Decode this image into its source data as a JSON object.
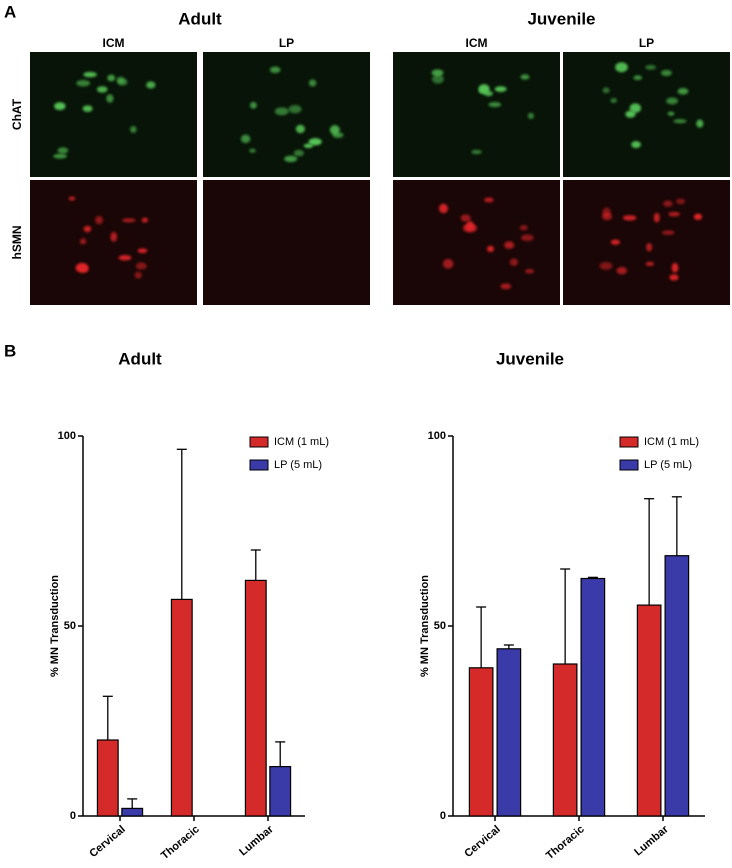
{
  "panel_a": {
    "label": "A",
    "groups": [
      {
        "title": "Adult",
        "columns": [
          "ICM",
          "LP"
        ]
      },
      {
        "title": "Juvenile",
        "columns": [
          "ICM",
          "LP"
        ]
      }
    ],
    "rows": [
      "ChAT",
      "hSMN"
    ]
  },
  "panel_b": {
    "label": "B"
  },
  "chart_data": [
    {
      "type": "bar",
      "title": "Adult",
      "ylabel": "% MN Transduction",
      "categories": [
        "Cervical",
        "Thoracic",
        "Lumbar"
      ],
      "series": [
        {
          "name": "ICM (1 mL)",
          "color": "#d42a2a",
          "values": [
            20,
            57,
            62
          ],
          "errors": [
            11.5,
            39.5,
            8
          ]
        },
        {
          "name": "LP (5 mL)",
          "color": "#3a3aa8",
          "values": [
            2,
            0,
            13
          ],
          "errors": [
            2.5,
            0,
            6.5
          ]
        }
      ],
      "ylim": [
        0,
        100
      ],
      "yticks": [
        0,
        50,
        100
      ],
      "legend": "upper right"
    },
    {
      "type": "bar",
      "title": "Juvenile",
      "ylabel": "% MN Transduction",
      "categories": [
        "Cervical",
        "Thoracic",
        "Lumbar"
      ],
      "series": [
        {
          "name": "ICM (1 mL)",
          "color": "#d42a2a",
          "values": [
            39,
            40,
            55.5
          ],
          "errors": [
            16,
            25,
            28
          ]
        },
        {
          "name": "LP (5 mL)",
          "color": "#3a3aa8",
          "values": [
            44,
            62.5,
            68.5
          ],
          "errors": [
            1,
            0.3,
            15.5
          ]
        }
      ],
      "ylim": [
        0,
        100
      ],
      "yticks": [
        0,
        50,
        100
      ],
      "legend": "upper right"
    }
  ]
}
